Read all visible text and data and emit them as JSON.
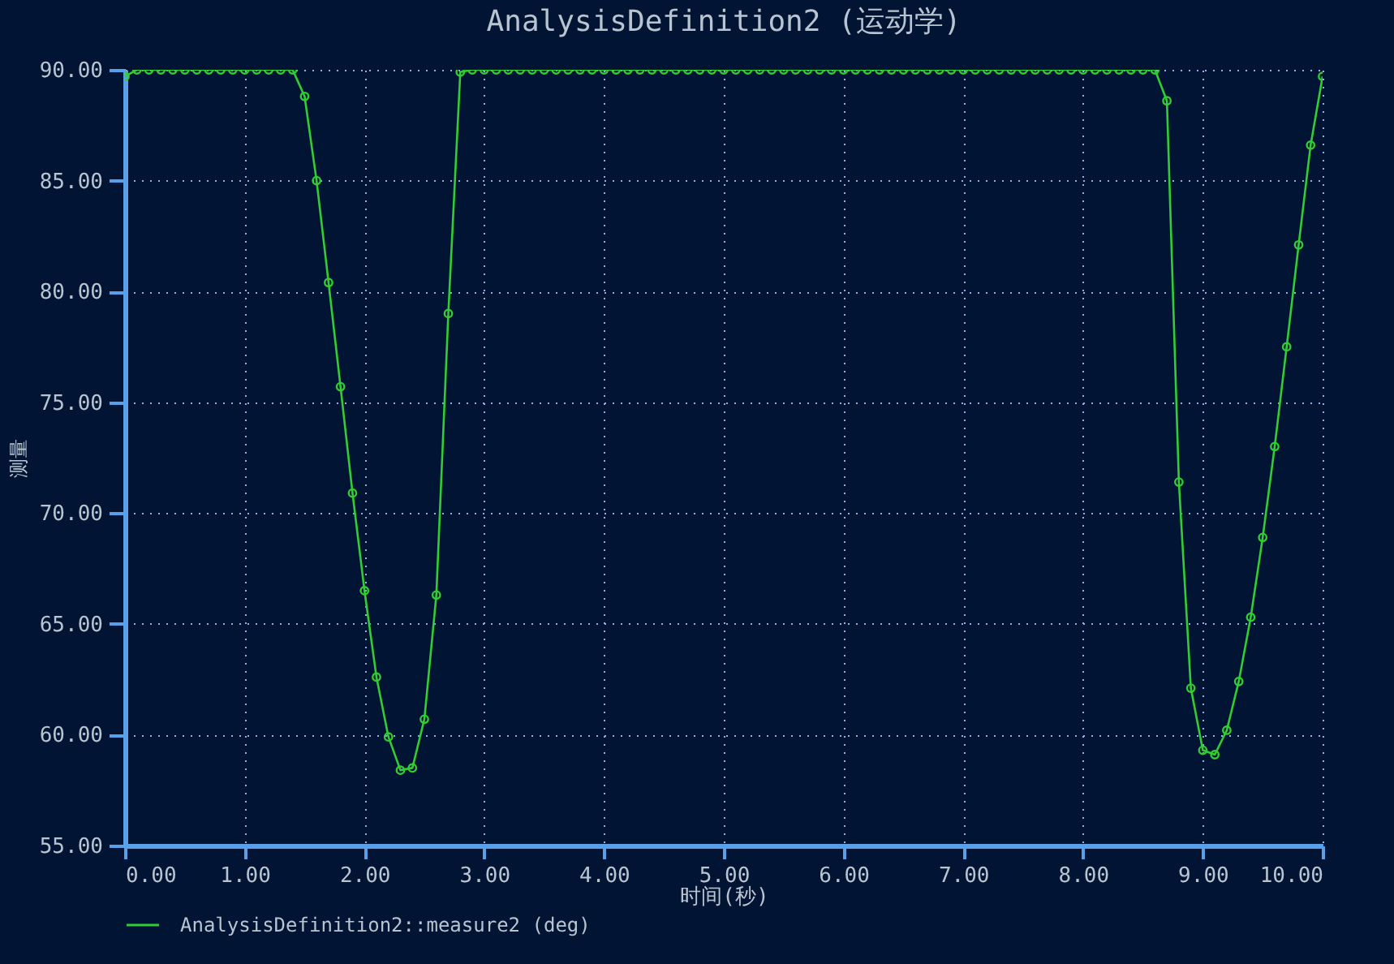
{
  "chart_data": {
    "type": "line",
    "title": "AnalysisDefinition2 (运动学)",
    "xlabel": "时间(秒)",
    "ylabel": "测量",
    "x": [
      0,
      0.1,
      0.2,
      0.3,
      0.4,
      0.5,
      0.6,
      0.7,
      0.8,
      0.9,
      1.0,
      1.1,
      1.2,
      1.3,
      1.4,
      1.5,
      1.6,
      1.7,
      1.8,
      1.9,
      2.0,
      2.1,
      2.2,
      2.3,
      2.4,
      2.5,
      2.6,
      2.7,
      2.8,
      2.9,
      3.0,
      3.1,
      3.2,
      3.3,
      3.4,
      3.5,
      3.6,
      3.7,
      3.8,
      3.9,
      4.0,
      4.1,
      4.2,
      4.3,
      4.4,
      4.5,
      4.6,
      4.7,
      4.8,
      4.9,
      5.0,
      5.1,
      5.2,
      5.3,
      5.4,
      5.5,
      5.6,
      5.7,
      5.8,
      5.9,
      6.0,
      6.1,
      6.2,
      6.3,
      6.4,
      6.5,
      6.6,
      6.7,
      6.8,
      6.9,
      7.0,
      7.1,
      7.2,
      7.3,
      7.4,
      7.5,
      7.6,
      7.7,
      7.8,
      7.9,
      8.0,
      8.1,
      8.2,
      8.3,
      8.4,
      8.5,
      8.6,
      8.7,
      8.8,
      8.9,
      9.0,
      9.1,
      9.2,
      9.3,
      9.4,
      9.5,
      9.6,
      9.7,
      9.8,
      9.9,
      10.0
    ],
    "series": [
      {
        "name": "AnalysisDefinition2::measure2 (deg)",
        "color": "#33cc33",
        "values": [
          89.7,
          90,
          90,
          90,
          90,
          90,
          90,
          90,
          90,
          90,
          90,
          90,
          90,
          90,
          90,
          88.8,
          85.0,
          80.4,
          75.7,
          70.9,
          66.5,
          62.6,
          59.9,
          58.4,
          58.5,
          60.7,
          66.3,
          79.0,
          89.9,
          90,
          90,
          90,
          90,
          90,
          90,
          90,
          90,
          90,
          90,
          90,
          90,
          90,
          90,
          90,
          90,
          90,
          90,
          90,
          90,
          90,
          90,
          90,
          90,
          90,
          90,
          90,
          90,
          90,
          90,
          90,
          90,
          90,
          90,
          90,
          90,
          90,
          90,
          90,
          90,
          90,
          90,
          90,
          90,
          90,
          90,
          90,
          90,
          90,
          90,
          90,
          90,
          90,
          90,
          90,
          90,
          90,
          90,
          88.6,
          71.4,
          62.1,
          59.3,
          59.1,
          60.2,
          62.4,
          65.3,
          68.9,
          73.0,
          77.5,
          82.1,
          86.6,
          89.7
        ]
      }
    ],
    "xlim": [
      0,
      10
    ],
    "ylim": [
      55,
      90
    ],
    "xticks": [
      {
        "value": 0,
        "label": "0.00"
      },
      {
        "value": 1,
        "label": "1.00"
      },
      {
        "value": 2,
        "label": "2.00"
      },
      {
        "value": 3,
        "label": "3.00"
      },
      {
        "value": 4,
        "label": "4.00"
      },
      {
        "value": 5,
        "label": "5.00"
      },
      {
        "value": 6,
        "label": "6.00"
      },
      {
        "value": 7,
        "label": "7.00"
      },
      {
        "value": 8,
        "label": "8.00"
      },
      {
        "value": 9,
        "label": "9.00"
      },
      {
        "value": 10,
        "label": "10.00"
      }
    ],
    "yticks": [
      {
        "value": 55,
        "label": "55.00"
      },
      {
        "value": 60,
        "label": "60.00"
      },
      {
        "value": 65,
        "label": "65.00"
      },
      {
        "value": 70,
        "label": "70.00"
      },
      {
        "value": 75,
        "label": "75.00"
      },
      {
        "value": 80,
        "label": "80.00"
      },
      {
        "value": 85,
        "label": "85.00"
      },
      {
        "value": 90,
        "label": "90.00"
      }
    ],
    "grid": true,
    "legend": "bottom left",
    "marker": "circle",
    "line_style": "solid"
  }
}
